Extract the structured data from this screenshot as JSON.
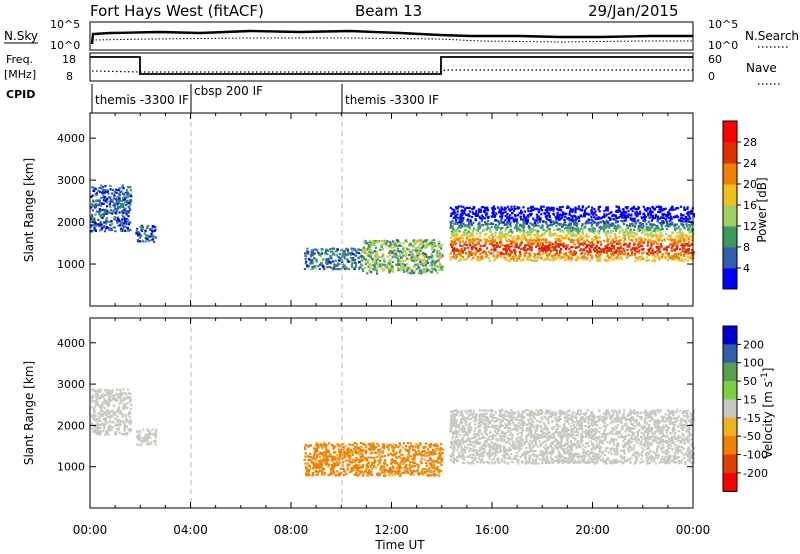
{
  "header": {
    "title": "Fort Hays West (fitACF)",
    "beam": "Beam 13",
    "date": "29/Jan/2015"
  },
  "top_panels": {
    "nsky": {
      "label": "N.Sky",
      "ticks": [
        "10^5",
        "10^0"
      ],
      "series": "N.Sky"
    },
    "nsearch": {
      "label": "N.Search",
      "ticks": [
        "10^5",
        "10^0"
      ]
    },
    "freq": {
      "label_line1": "Freq.",
      "label_line2": "[MHz]",
      "ticks": [
        18,
        8
      ]
    },
    "nave": {
      "label": "Nave",
      "ticks": [
        60,
        0
      ]
    },
    "cpid": {
      "label": "CPID",
      "segments": [
        {
          "label": "themis -3300 IF",
          "start": 0.0,
          "end": 4.0
        },
        {
          "label": "cbsp 200 IF",
          "start": 4.0,
          "end": 10.0
        },
        {
          "label": "themis -3300 IF",
          "start": 10.0,
          "end": 24.0
        }
      ]
    }
  },
  "chart_data": [
    {
      "type": "heatmap",
      "title": "",
      "ylabel": "Slant Range [km]",
      "ylim": [
        0,
        4600
      ],
      "yticks": [
        1000,
        2000,
        3000,
        4000
      ],
      "xlim": [
        0,
        24
      ],
      "colorbar": {
        "label": "Power [dB]",
        "ticks": [
          4,
          8,
          12,
          16,
          20,
          24,
          28
        ],
        "colors": [
          "#0000ff",
          "#2e5fa8",
          "#3a9a60",
          "#a0d060",
          "#f0c020",
          "#f08000",
          "#e03000",
          "#ff0000"
        ]
      },
      "regions": [
        {
          "x": [
            0.0,
            1.6
          ],
          "y": [
            1800,
            2900
          ],
          "value": 6
        },
        {
          "x": [
            1.8,
            2.6
          ],
          "y": [
            1550,
            1950
          ],
          "value": 6
        },
        {
          "x": [
            8.5,
            10.8
          ],
          "y": [
            900,
            1400
          ],
          "value": 8
        },
        {
          "x": [
            10.8,
            14.0
          ],
          "y": [
            800,
            1600
          ],
          "value": 12
        },
        {
          "x": [
            14.3,
            24.0
          ],
          "y": [
            1100,
            2400
          ],
          "value": 22
        }
      ]
    },
    {
      "type": "heatmap",
      "title": "",
      "ylabel": "Slant Range [km]",
      "ylim": [
        0,
        4600
      ],
      "yticks": [
        1000,
        2000,
        3000,
        4000
      ],
      "xlim": [
        0,
        24
      ],
      "colorbar": {
        "label": "Velocity [m s^-1]",
        "ticks": [
          200,
          100,
          50,
          15,
          -15,
          -50,
          -100,
          -200
        ],
        "colors": [
          "#0000cc",
          "#2e5fa8",
          "#5aa050",
          "#7ed040",
          "#c8c8c0",
          "#f0b020",
          "#f08000",
          "#e04000",
          "#ff0000"
        ]
      },
      "regions": [
        {
          "x": [
            0.0,
            1.6
          ],
          "y": [
            1800,
            2900
          ],
          "value": 0
        },
        {
          "x": [
            1.8,
            2.6
          ],
          "y": [
            1550,
            1950
          ],
          "value": 0
        },
        {
          "x": [
            8.5,
            14.0
          ],
          "y": [
            800,
            1600
          ],
          "value": -60
        },
        {
          "x": [
            14.3,
            24.0
          ],
          "y": [
            1100,
            2400
          ],
          "value": 0
        }
      ]
    }
  ],
  "x_axis": {
    "label": "Time UT",
    "ticks": [
      "00:00",
      "04:00",
      "08:00",
      "12:00",
      "16:00",
      "20:00",
      "00:00"
    ]
  }
}
